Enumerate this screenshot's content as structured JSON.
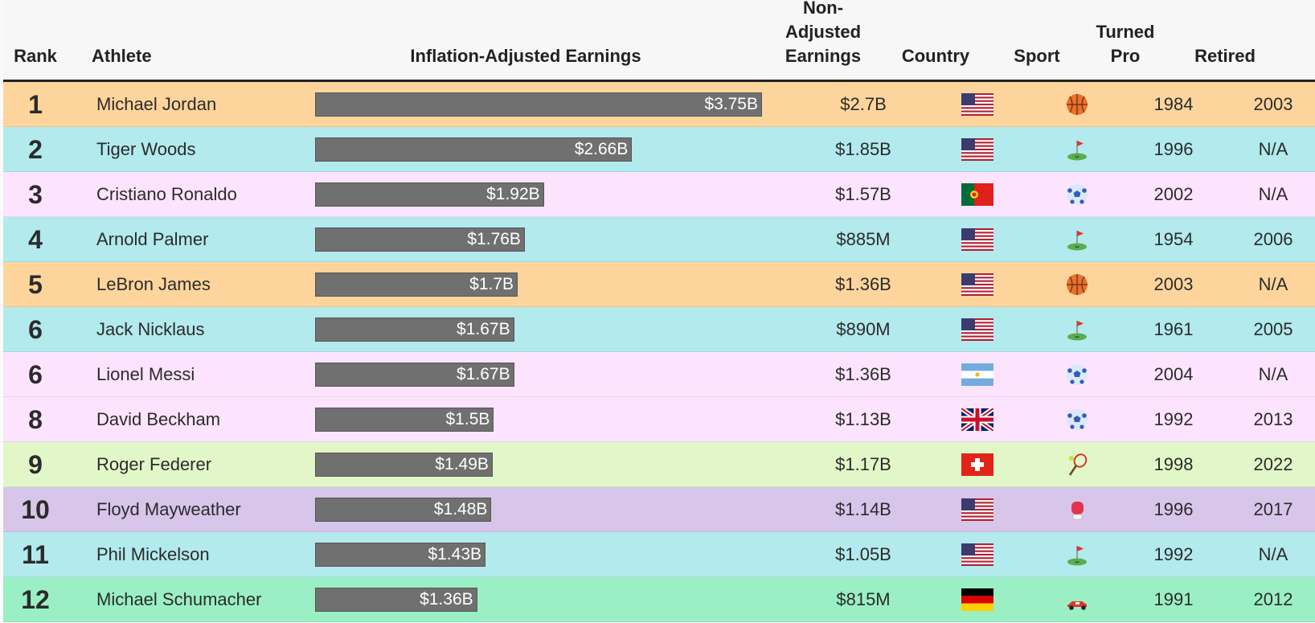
{
  "headers": {
    "rank": "Rank",
    "athlete": "Athlete",
    "inflation": "Inflation-Adjusted Earnings",
    "nonadj_1": "Non-",
    "nonadj_2": "Adjusted",
    "nonadj_3": "Earnings",
    "country": "Country",
    "sport": "Sport",
    "turned_1": "Turned",
    "turned_2": "Pro",
    "retired": "Retired"
  },
  "colors": {
    "basketball": "#fdd59c",
    "golf": "#b2eaee",
    "soccer": "#fde4fe",
    "tennis": "#e2f7c8",
    "boxing": "#d8c5ea",
    "racing": "#9af0c4",
    "bar": "#707070"
  },
  "chart_data": {
    "type": "bar",
    "title": "Inflation-Adjusted Earnings",
    "xlim": [
      0,
      3.75
    ],
    "unit": "billion USD",
    "categories": [
      "Michael Jordan",
      "Tiger Woods",
      "Cristiano Ronaldo",
      "Arnold Palmer",
      "LeBron James",
      "Jack Nicklaus",
      "Lionel Messi",
      "David Beckham",
      "Roger Federer",
      "Floyd Mayweather",
      "Phil Mickelson",
      "Michael Schumacher"
    ],
    "values": [
      3.75,
      2.66,
      1.92,
      1.76,
      1.7,
      1.67,
      1.67,
      1.5,
      1.49,
      1.48,
      1.43,
      1.36
    ]
  },
  "rows": [
    {
      "rank": "1",
      "name": "Michael Jordan",
      "value": 3.75,
      "label": "$3.75B",
      "nonadj": "$2.7B",
      "country": "us",
      "sport": "basketball",
      "pro": "1984",
      "retired": "2003"
    },
    {
      "rank": "2",
      "name": "Tiger Woods",
      "value": 2.66,
      "label": "$2.66B",
      "nonadj": "$1.85B",
      "country": "us",
      "sport": "golf",
      "pro": "1996",
      "retired": "N/A"
    },
    {
      "rank": "3",
      "name": "Cristiano Ronaldo",
      "value": 1.92,
      "label": "$1.92B",
      "nonadj": "$1.57B",
      "country": "pt",
      "sport": "soccer",
      "pro": "2002",
      "retired": "N/A"
    },
    {
      "rank": "4",
      "name": "Arnold Palmer",
      "value": 1.76,
      "label": "$1.76B",
      "nonadj": "$885M",
      "country": "us",
      "sport": "golf",
      "pro": "1954",
      "retired": "2006"
    },
    {
      "rank": "5",
      "name": "LeBron James",
      "value": 1.7,
      "label": "$1.7B",
      "nonadj": "$1.36B",
      "country": "us",
      "sport": "basketball",
      "pro": "2003",
      "retired": "N/A"
    },
    {
      "rank": "6",
      "name": "Jack Nicklaus",
      "value": 1.67,
      "label": "$1.67B",
      "nonadj": "$890M",
      "country": "us",
      "sport": "golf",
      "pro": "1961",
      "retired": "2005"
    },
    {
      "rank": "6",
      "name": "Lionel Messi",
      "value": 1.67,
      "label": "$1.67B",
      "nonadj": "$1.36B",
      "country": "ar",
      "sport": "soccer",
      "pro": "2004",
      "retired": "N/A"
    },
    {
      "rank": "8",
      "name": "David Beckham",
      "value": 1.5,
      "label": "$1.5B",
      "nonadj": "$1.13B",
      "country": "gb",
      "sport": "soccer",
      "pro": "1992",
      "retired": "2013"
    },
    {
      "rank": "9",
      "name": "Roger Federer",
      "value": 1.49,
      "label": "$1.49B",
      "nonadj": "$1.17B",
      "country": "ch",
      "sport": "tennis",
      "pro": "1998",
      "retired": "2022"
    },
    {
      "rank": "10",
      "name": "Floyd Mayweather",
      "value": 1.48,
      "label": "$1.48B",
      "nonadj": "$1.14B",
      "country": "us",
      "sport": "boxing",
      "pro": "1996",
      "retired": "2017"
    },
    {
      "rank": "11",
      "name": "Phil Mickelson",
      "value": 1.43,
      "label": "$1.43B",
      "nonadj": "$1.05B",
      "country": "us",
      "sport": "golf",
      "pro": "1992",
      "retired": "N/A"
    },
    {
      "rank": "12",
      "name": "Michael Schumacher",
      "value": 1.36,
      "label": "$1.36B",
      "nonadj": "$815M",
      "country": "de",
      "sport": "racing",
      "pro": "1991",
      "retired": "2012"
    }
  ]
}
